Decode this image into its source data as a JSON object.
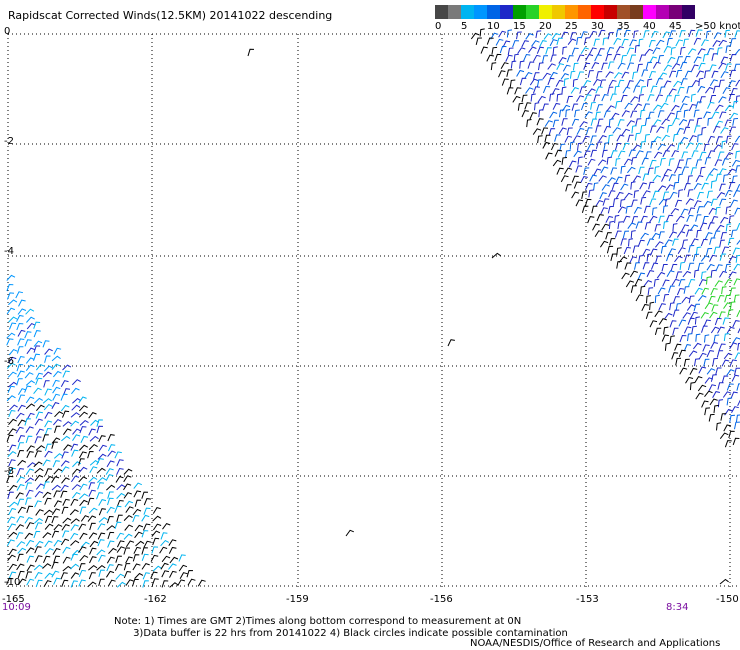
{
  "header": {
    "title": "Rapidscat Corrected Winds(12.5KM) 20141022 descending"
  },
  "legend": {
    "colors": [
      "#474747",
      "#7a7a7a",
      "#00b4f0",
      "#0096ff",
      "#0064e6",
      "#1e28c8",
      "#00a000",
      "#28d228",
      "#f0f000",
      "#f0c800",
      "#ff9600",
      "#ff6400",
      "#ff0000",
      "#c80000",
      "#a05028",
      "#783c1e",
      "#ff00ff",
      "#b400b4",
      "#780078",
      "#320064"
    ],
    "ticks": [
      "0",
      "5",
      "10",
      "15",
      "20",
      "25",
      "30",
      "35",
      "40",
      "45",
      ">50 knots"
    ]
  },
  "axes": {
    "y_labels": [
      "0",
      "-2",
      "-4",
      "-6",
      "-8",
      "-10"
    ],
    "x_labels": [
      "-165",
      "-162",
      "-159",
      "-156",
      "-153",
      "-150"
    ],
    "time_left": "10:09",
    "time_right": "8:34"
  },
  "notes": {
    "line1": "Note: 1) Times are GMT 2)Times along bottom correspond to measurement at 0N",
    "line2": "      3)Data buffer is 22 hrs from 20141022 4) Black circles indicate possible contamination",
    "credit": "NOAA/NESDIS/Office of Research and Applications"
  }
}
